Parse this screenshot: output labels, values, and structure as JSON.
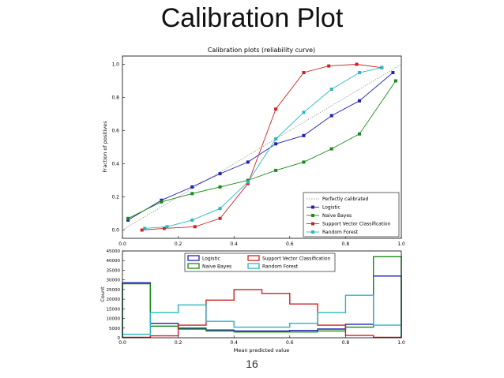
{
  "slide": {
    "title": "Calibration Plot",
    "page_number": "16"
  },
  "chart_data": [
    {
      "type": "line",
      "title": "Calibration plots  (reliability curve)",
      "xlabel": "",
      "ylabel": "Fraction of positives",
      "xlim": [
        0.0,
        1.0
      ],
      "ylim": [
        -0.05,
        1.05
      ],
      "xticks": [
        "0.0",
        "0.2",
        "0.4",
        "0.6",
        "0.8",
        "1.0"
      ],
      "yticks": [
        "0.0",
        "0.2",
        "0.4",
        "0.6",
        "0.8",
        "1.0"
      ],
      "grid": false,
      "legend_position": "lower-right",
      "reference": {
        "name": "Perfectly calibrated",
        "x": [
          0,
          1
        ],
        "y": [
          0,
          1
        ],
        "color": "#888888"
      },
      "series": [
        {
          "name": "Logistic",
          "color": "#1f1fb4",
          "x": [
            0.02,
            0.14,
            0.25,
            0.35,
            0.45,
            0.55,
            0.65,
            0.75,
            0.85,
            0.97
          ],
          "y": [
            0.06,
            0.18,
            0.26,
            0.34,
            0.41,
            0.52,
            0.57,
            0.69,
            0.78,
            0.95
          ]
        },
        {
          "name": "Naive Bayes",
          "color": "#1a8a1a",
          "x": [
            0.02,
            0.14,
            0.25,
            0.35,
            0.45,
            0.55,
            0.65,
            0.75,
            0.85,
            0.98
          ],
          "y": [
            0.07,
            0.17,
            0.22,
            0.26,
            0.3,
            0.36,
            0.41,
            0.49,
            0.58,
            0.9
          ]
        },
        {
          "name": "Support Vector Classification",
          "color": "#cc2222",
          "x": [
            0.07,
            0.15,
            0.26,
            0.35,
            0.45,
            0.55,
            0.65,
            0.74,
            0.84,
            0.93
          ],
          "y": [
            0.0,
            0.01,
            0.02,
            0.07,
            0.28,
            0.73,
            0.95,
            0.99,
            1.0,
            0.98
          ]
        },
        {
          "name": "Random Forest",
          "color": "#2ab5c0",
          "x": [
            0.08,
            0.16,
            0.25,
            0.35,
            0.45,
            0.55,
            0.65,
            0.75,
            0.85,
            0.93
          ],
          "y": [
            0.01,
            0.02,
            0.06,
            0.13,
            0.29,
            0.55,
            0.71,
            0.85,
            0.95,
            0.98
          ]
        }
      ]
    },
    {
      "type": "histogram",
      "title": "",
      "xlabel": "Mean predicted value",
      "ylabel": "Count",
      "xlim": [
        0.0,
        1.0
      ],
      "ylim": [
        0,
        45000
      ],
      "xticks": [
        "0.0",
        "0.2",
        "0.4",
        "0.6",
        "0.8",
        "1.0"
      ],
      "yticks": [
        "0",
        "5000",
        "10000",
        "15000",
        "20000",
        "25000",
        "30000",
        "35000",
        "40000",
        "45000"
      ],
      "legend_position": "upper-center",
      "bin_edges": [
        0.0,
        0.1,
        0.2,
        0.3,
        0.4,
        0.5,
        0.6,
        0.7,
        0.8,
        0.9,
        1.0
      ],
      "series": [
        {
          "name": "Logistic",
          "color": "#1f1fb4",
          "values": [
            28500,
            7500,
            5000,
            4000,
            3500,
            3500,
            3800,
            4500,
            7000,
            32000
          ]
        },
        {
          "name": "Naive Bayes",
          "color": "#1a8a1a",
          "values": [
            28000,
            6000,
            4500,
            3500,
            3000,
            3000,
            3000,
            3500,
            5500,
            42000
          ]
        },
        {
          "name": "Support Vector Classification",
          "color": "#cc2222",
          "values": [
            200,
            1000,
            6500,
            19500,
            25000,
            23000,
            17500,
            6500,
            1200,
            200
          ]
        },
        {
          "name": "Random Forest",
          "color": "#2ab5c0",
          "values": [
            1800,
            13000,
            17000,
            8500,
            5500,
            5500,
            7500,
            13000,
            22000,
            6500
          ]
        }
      ]
    }
  ]
}
